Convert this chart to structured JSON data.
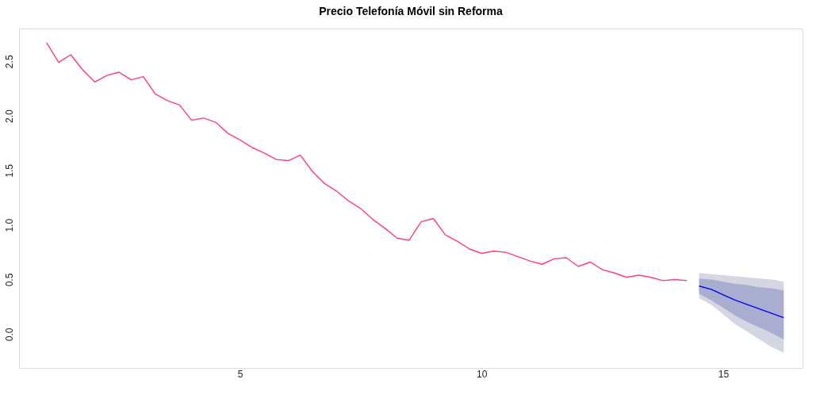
{
  "chart_data": {
    "type": "line",
    "title": "Precio Telefonía Móvil sin Reforma",
    "x": [
      1,
      1.25,
      1.5,
      1.75,
      2,
      2.25,
      2.5,
      2.75,
      3,
      3.25,
      3.5,
      3.75,
      4,
      4.25,
      4.5,
      4.75,
      5,
      5.25,
      5.5,
      5.75,
      6,
      6.25,
      6.5,
      6.75,
      7,
      7.25,
      7.5,
      7.75,
      8,
      8.25,
      8.5,
      8.75,
      9,
      9.25,
      9.5,
      9.75,
      10,
      10.25,
      10.5,
      10.75,
      11,
      11.25,
      11.5,
      11.75,
      12,
      12.25,
      12.5,
      12.75,
      13,
      13.25,
      13.5,
      13.75,
      14,
      14.25
    ],
    "series": [
      {
        "color": "#ff4070",
        "values": [
          2.67,
          2.49,
          2.56,
          2.42,
          2.31,
          2.37,
          2.4,
          2.33,
          2.36,
          2.2,
          2.14,
          2.1,
          1.96,
          1.98,
          1.94,
          1.84,
          1.78,
          1.71,
          1.66,
          1.6,
          1.59,
          1.64,
          1.49,
          1.38,
          1.31,
          1.22,
          1.15,
          1.05,
          0.97,
          0.88,
          0.86,
          1.03,
          1.06,
          0.91,
          0.85,
          0.78,
          0.74,
          0.76,
          0.75,
          0.71,
          0.67,
          0.64,
          0.69,
          0.7,
          0.62,
          0.66,
          0.59,
          0.56,
          0.52,
          0.54,
          0.52,
          0.49,
          0.5,
          0.49
        ]
      },
      {
        "color": "#d4d7e1",
        "x": [
          14.5,
          14.75,
          15,
          15.25,
          15.5,
          15.75,
          16,
          16.25
        ],
        "values": [
          null,
          null,
          null,
          null,
          null,
          null,
          null,
          null
        ],
        "lower": [
          0.33,
          0.27,
          0.18,
          0.09,
          0.02,
          -0.05,
          -0.12,
          -0.17
        ],
        "upper": [
          0.56,
          0.55,
          0.54,
          0.53,
          0.52,
          0.51,
          0.5,
          0.48
        ]
      },
      {
        "color": "#a9aed0",
        "x": [
          14.5,
          14.75,
          15,
          15.25,
          15.5,
          15.75,
          16,
          16.25
        ],
        "values": [
          null,
          null,
          null,
          null,
          null,
          null,
          null,
          null
        ],
        "lower": [
          0.37,
          0.31,
          0.24,
          0.17,
          0.11,
          0.06,
          0.01,
          -0.05
        ],
        "upper": [
          0.51,
          0.5,
          0.48,
          0.46,
          0.45,
          0.43,
          0.42,
          0.4
        ]
      },
      {
        "color": "#0000ff",
        "x": [
          14.5,
          14.75,
          15,
          15.25,
          15.5,
          15.75,
          16,
          16.25
        ],
        "values": [
          0.44,
          0.41,
          0.36,
          0.31,
          0.27,
          0.23,
          0.19,
          0.15
        ]
      }
    ],
    "xlim": [
      0.43,
      16.64
    ],
    "xticks": [
      5,
      10,
      15
    ],
    "ylim": [
      -0.31,
      2.8
    ],
    "yticks": [
      {
        "value": 0,
        "label": "0.0"
      },
      0.5,
      {
        "value": 1,
        "label": "1.0"
      },
      1.5,
      {
        "value": 2,
        "label": "2.0"
      },
      2.5
    ],
    "grid": false
  }
}
